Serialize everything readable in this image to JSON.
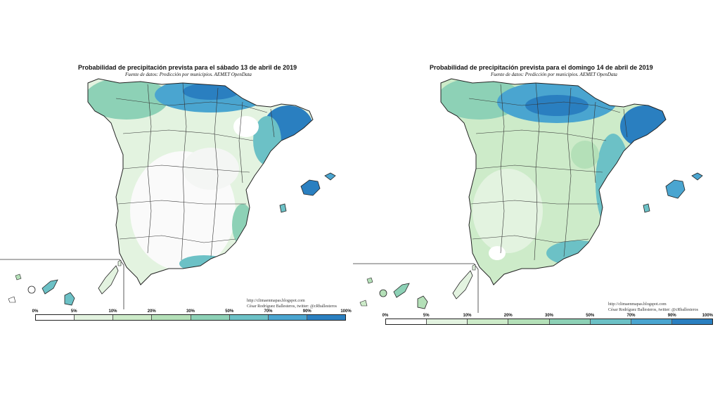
{
  "left_map": {
    "title": "Probabilidad de precipitación prevista para el sábado 13 de abril de 2019",
    "subtitle": "Fuente de datos: Predicción por municipios. AEMET OpenData",
    "credit_url": "http://climaenmapas.blogspot.com",
    "credit_author": "César Rodríguez Ballesteros, twitter: @cRballesteros"
  },
  "right_map": {
    "title": "Probabilidad de precipitación prevista para el domingo 14 de abril de 2019",
    "subtitle": "Fuente de datos: Predicción por municipios. AEMET OpenData",
    "credit_url": "http://climaenmapas.blogspot.com",
    "credit_author": "César Rodríguez Ballesteros, twitter: @cRballesteros"
  },
  "legend": {
    "labels": [
      "0%",
      "5%",
      "10%",
      "20%",
      "30%",
      "50%",
      "70%",
      "90%",
      "100%"
    ],
    "colors": [
      "#ffffff",
      "#e3f3e0",
      "#cdebc9",
      "#b4e0b8",
      "#8dd1b6",
      "#6cc1c6",
      "#4aa5d0",
      "#2a7fc0"
    ]
  }
}
